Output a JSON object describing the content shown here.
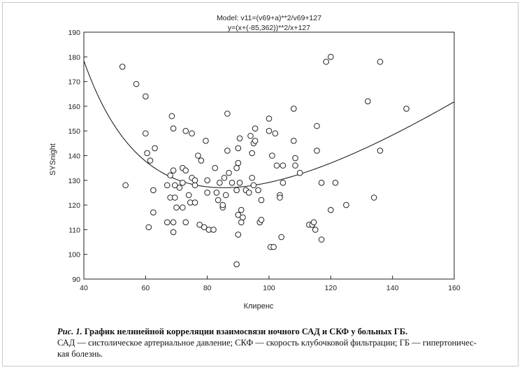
{
  "chart_data": {
    "type": "scatter",
    "title_lines": [
      "Model: v11=(v69+a)**2/v69+127",
      "y=(x+(-85,362))**2/x+127"
    ],
    "xlabel": "Клиренс",
    "ylabel": "SYSnight",
    "xlim": [
      40,
      160
    ],
    "ylim": [
      90,
      190
    ],
    "xticks": [
      40,
      60,
      80,
      100,
      120,
      140,
      160
    ],
    "yticks": [
      90,
      100,
      110,
      120,
      130,
      140,
      150,
      160,
      170,
      180,
      190
    ],
    "model": {
      "a": -85.362,
      "c": 127,
      "x_range": [
        40,
        160
      ]
    },
    "points": [
      [
        52.5,
        176
      ],
      [
        53.5,
        128
      ],
      [
        57,
        169
      ],
      [
        60,
        164
      ],
      [
        60,
        149
      ],
      [
        60.5,
        141
      ],
      [
        61,
        111
      ],
      [
        61.5,
        138
      ],
      [
        62.5,
        126
      ],
      [
        62.5,
        117
      ],
      [
        63,
        143
      ],
      [
        67,
        113
      ],
      [
        67,
        128
      ],
      [
        68,
        132
      ],
      [
        68,
        123
      ],
      [
        68.5,
        156
      ],
      [
        69,
        134
      ],
      [
        69,
        151
      ],
      [
        69,
        113
      ],
      [
        69,
        109
      ],
      [
        69.5,
        128
      ],
      [
        69.5,
        123
      ],
      [
        70,
        119
      ],
      [
        71,
        127
      ],
      [
        72,
        135
      ],
      [
        72,
        129
      ],
      [
        72,
        119
      ],
      [
        73,
        150
      ],
      [
        73,
        134
      ],
      [
        73,
        113
      ],
      [
        74,
        124
      ],
      [
        74.5,
        121
      ],
      [
        75,
        131
      ],
      [
        75,
        149
      ],
      [
        76,
        128
      ],
      [
        76,
        130
      ],
      [
        76,
        121
      ],
      [
        77,
        140
      ],
      [
        77.5,
        112
      ],
      [
        78,
        138
      ],
      [
        79,
        111
      ],
      [
        79.5,
        146
      ],
      [
        80,
        130
      ],
      [
        80,
        125
      ],
      [
        80.5,
        110
      ],
      [
        82,
        110
      ],
      [
        82.5,
        135
      ],
      [
        83,
        125
      ],
      [
        83.5,
        122
      ],
      [
        84,
        129
      ],
      [
        85,
        119
      ],
      [
        85,
        120
      ],
      [
        85.5,
        131
      ],
      [
        86,
        124
      ],
      [
        86.5,
        157
      ],
      [
        86.5,
        142
      ],
      [
        87,
        133
      ],
      [
        88,
        129
      ],
      [
        89.5,
        126
      ],
      [
        89.5,
        135
      ],
      [
        90,
        143
      ],
      [
        90,
        137
      ],
      [
        90,
        116
      ],
      [
        90,
        108
      ],
      [
        89.5,
        96
      ],
      [
        90.5,
        147
      ],
      [
        90.5,
        129
      ],
      [
        91,
        113
      ],
      [
        91,
        118
      ],
      [
        91.5,
        115
      ],
      [
        92.5,
        126
      ],
      [
        93.5,
        125
      ],
      [
        94,
        148
      ],
      [
        94.5,
        131
      ],
      [
        94.5,
        141
      ],
      [
        95,
        145
      ],
      [
        95,
        128
      ],
      [
        95.5,
        151
      ],
      [
        95.5,
        146
      ],
      [
        96.5,
        126
      ],
      [
        97,
        113
      ],
      [
        97.5,
        114
      ],
      [
        97.5,
        122
      ],
      [
        100,
        150
      ],
      [
        100,
        155
      ],
      [
        100.5,
        103
      ],
      [
        101,
        140
      ],
      [
        101.5,
        103
      ],
      [
        102,
        149
      ],
      [
        102.5,
        136
      ],
      [
        103.5,
        124
      ],
      [
        103.5,
        123
      ],
      [
        104,
        107
      ],
      [
        104.5,
        136
      ],
      [
        104.5,
        129
      ],
      [
        108,
        159
      ],
      [
        108,
        146
      ],
      [
        108.5,
        139
      ],
      [
        108.5,
        136
      ],
      [
        110,
        133
      ],
      [
        113,
        112
      ],
      [
        114,
        112
      ],
      [
        114.5,
        113
      ],
      [
        115,
        110
      ],
      [
        115.5,
        152
      ],
      [
        115.5,
        142
      ],
      [
        117,
        106
      ],
      [
        117,
        129
      ],
      [
        118.5,
        178
      ],
      [
        120,
        180
      ],
      [
        120,
        118
      ],
      [
        121.5,
        129
      ],
      [
        125,
        120
      ],
      [
        132,
        162
      ],
      [
        134,
        123
      ],
      [
        136,
        178
      ],
      [
        136,
        142
      ],
      [
        144.5,
        159
      ]
    ]
  },
  "caption": {
    "fig_label": "Рис. 1.",
    "title": "График нелинейной корреляции взаимосвязи ночного САД и СКФ у больных ГБ.",
    "line1": "САД — систолическое артериальное давление; СКФ — скорость клубочковой фильтрации; ГБ — гипертоничес-",
    "line2": "кая болезнь."
  }
}
